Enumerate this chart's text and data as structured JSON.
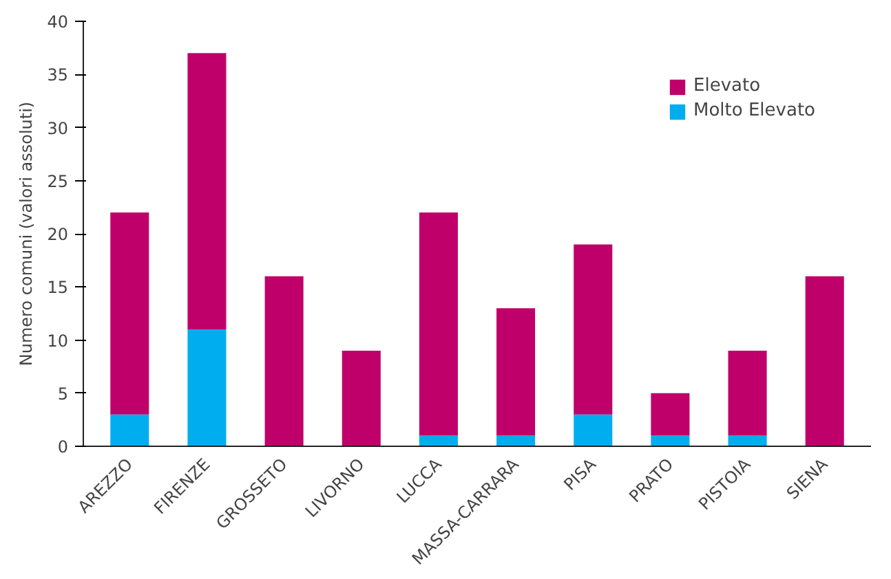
{
  "chart_data": {
    "type": "bar",
    "stacked": true,
    "ylabel": "Numero comuni (valori assoluti)",
    "categories": [
      "AREZZO",
      "FIRENZE",
      "GROSSETO",
      "LIVORNO",
      "LUCCA",
      "MASSA-CARRARA",
      "PISA",
      "PRATO",
      "PISTOIA",
      "SIENA"
    ],
    "series": [
      {
        "name": "Molto Elevato",
        "color": "#00aeef",
        "values": [
          3,
          11,
          0,
          0,
          1,
          1,
          3,
          1,
          1,
          0
        ]
      },
      {
        "name": "Elevato",
        "color": "#c0006a",
        "values": [
          19,
          26,
          16,
          9,
          21,
          12,
          16,
          4,
          8,
          16
        ]
      }
    ],
    "ylim": [
      0,
      40
    ],
    "yticks": [
      0,
      5,
      10,
      15,
      20,
      25,
      30,
      35,
      40
    ],
    "grid": false,
    "legend": "top right"
  }
}
